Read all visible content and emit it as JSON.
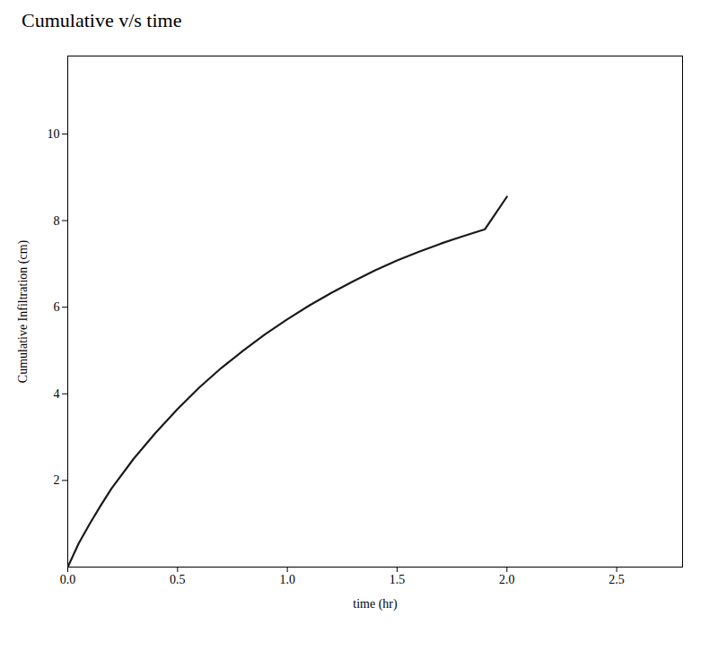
{
  "chart_data": {
    "type": "line",
    "title": "Cumulative v/s time",
    "xlabel": "time (hr)",
    "ylabel": "Cumulative Infiltration (cm)",
    "x": [
      0.0,
      0.05,
      0.1,
      0.15,
      0.2,
      0.3,
      0.4,
      0.5,
      0.6,
      0.7,
      0.8,
      0.9,
      1.0,
      1.1,
      1.2,
      1.3,
      1.4,
      1.5,
      1.6,
      1.7,
      1.8,
      1.9,
      2.0
    ],
    "values": [
      0.0,
      0.55,
      1.0,
      1.42,
      1.82,
      2.5,
      3.1,
      3.65,
      4.15,
      4.6,
      5.0,
      5.38,
      5.72,
      6.04,
      6.33,
      6.6,
      6.85,
      7.08,
      7.28,
      7.47,
      7.64,
      7.8,
      8.55
    ],
    "color": "#1a1a1a",
    "xlim": [
      0,
      2.8
    ],
    "xticks": [
      0,
      0.5,
      1,
      1.5,
      2,
      2.5
    ],
    "ylim": [
      0,
      11.8
    ],
    "yticks": [
      2,
      4,
      6,
      8,
      10
    ]
  }
}
